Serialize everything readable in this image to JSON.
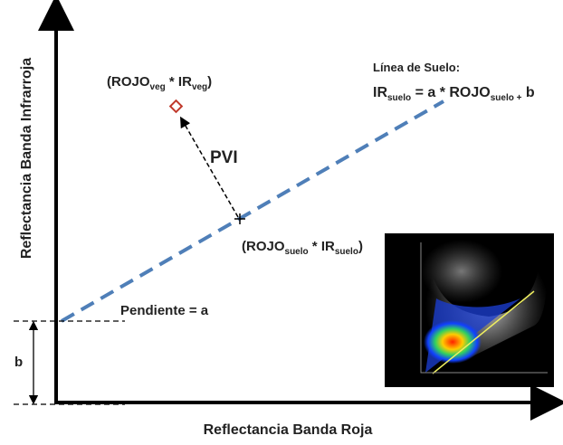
{
  "axes": {
    "y_label": "Reflectancia Banda Infrarroja",
    "x_label": "Reflectancia Banda Roja"
  },
  "soil_line": {
    "title": "Línea de Suelo:",
    "equation": [
      {
        "text": "IR",
        "sub": false
      },
      {
        "text": "suelo",
        "sub": true
      },
      {
        "text": " = a * ROJO",
        "sub": false
      },
      {
        "text": "suelo +",
        "sub": true
      },
      {
        "text": " b",
        "sub": false
      }
    ]
  },
  "veg_point": {
    "label": [
      {
        "text": "(ROJO",
        "sub": false
      },
      {
        "text": "veg",
        "sub": true
      },
      {
        "text": " * IR",
        "sub": false
      },
      {
        "text": "veg",
        "sub": true
      },
      {
        "text": ")",
        "sub": false
      }
    ]
  },
  "soil_point": {
    "label": [
      {
        "text": "(ROJO",
        "sub": false
      },
      {
        "text": "suelo",
        "sub": true
      },
      {
        "text": " * IR",
        "sub": false
      },
      {
        "text": "suelo",
        "sub": true
      },
      {
        "text": ")",
        "sub": false
      }
    ]
  },
  "pvi": "PVI",
  "slope": "Pendiente = a",
  "intercept": "b"
}
